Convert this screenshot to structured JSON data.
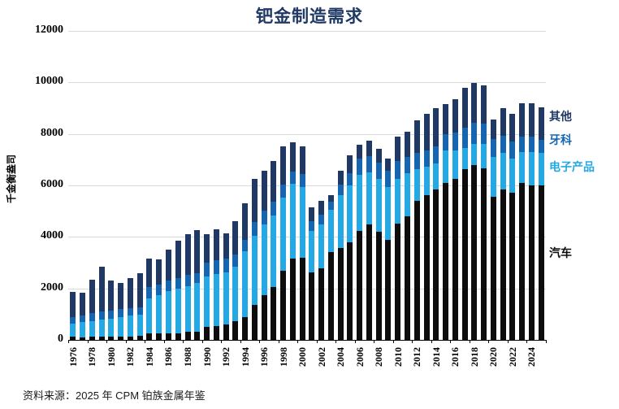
{
  "title": "钯金制造需求",
  "source_note": "资料来源：2025 年 CPM 铂族金属年鉴",
  "colors": {
    "title": "#1F3864",
    "auto": "#0d0d0d",
    "electronics": "#24A9E4",
    "dental": "#1565B1",
    "other": "#1F3864",
    "gridline": "#dadada"
  },
  "chart_data": {
    "type": "bar",
    "stacked": true,
    "title": "钯金制造需求",
    "ylabel": "千金衡盎司",
    "ylim": [
      0,
      12000
    ],
    "y_ticks": [
      0,
      2000,
      4000,
      6000,
      8000,
      10000,
      12000
    ],
    "grid": "horizontal",
    "legend_position": "right-of-last-bar",
    "x": [
      1976,
      1977,
      1978,
      1979,
      1980,
      1981,
      1982,
      1983,
      1984,
      1985,
      1986,
      1987,
      1988,
      1989,
      1990,
      1991,
      1992,
      1993,
      1994,
      1995,
      1996,
      1997,
      1998,
      1999,
      2000,
      2001,
      2002,
      2003,
      2004,
      2005,
      2006,
      2007,
      2008,
      2009,
      2010,
      2011,
      2012,
      2013,
      2014,
      2015,
      2016,
      2017,
      2018,
      2019,
      2020,
      2021,
      2022,
      2023,
      2024,
      2025
    ],
    "x_tick_labels": [
      "1976",
      "1978",
      "1980",
      "1982",
      "1984",
      "1986",
      "1988",
      "1990",
      "1992",
      "1994",
      "1996",
      "1998",
      "2000",
      "2002",
      "2004",
      "2006",
      "2008",
      "2010",
      "2012",
      "2014",
      "2016",
      "2018",
      "2020",
      "2022",
      "2024"
    ],
    "series": [
      {
        "name": "汽车",
        "color": "#0d0d0d",
        "values": [
          130,
          90,
          130,
          135,
          135,
          140,
          140,
          150,
          250,
          250,
          250,
          265,
          305,
          320,
          515,
          550,
          610,
          730,
          885,
          1360,
          1730,
          2040,
          2675,
          3150,
          3200,
          2620,
          2780,
          3410,
          3570,
          3780,
          4220,
          4495,
          4200,
          3885,
          4515,
          4800,
          5410,
          5620,
          5850,
          6095,
          6255,
          6620,
          6780,
          6675,
          5570,
          5830,
          5725,
          6095,
          6000,
          5990
        ]
      },
      {
        "name": "电子产品",
        "color": "#24A9E4",
        "values": [
          500,
          590,
          600,
          645,
          700,
          745,
          800,
          840,
          1370,
          1480,
          1635,
          1725,
          1790,
          1880,
          1950,
          2020,
          2010,
          2100,
          2550,
          2685,
          2750,
          2800,
          2850,
          2900,
          2750,
          1600,
          1700,
          1630,
          2050,
          2210,
          2190,
          2020,
          2055,
          2055,
          1740,
          1665,
          1210,
          1105,
          1015,
          1265,
          1100,
          845,
          840,
          925,
          1525,
          1425,
          1315,
          1210,
          1300,
          1265
        ]
      },
      {
        "name": "牙科",
        "color": "#1565B1",
        "values": [
          260,
          265,
          315,
          320,
          315,
          315,
          285,
          265,
          420,
          420,
          420,
          420,
          420,
          390,
          525,
          525,
          525,
          500,
          460,
          540,
          530,
          520,
          510,
          500,
          490,
          400,
          390,
          330,
          420,
          470,
          630,
          630,
          630,
          630,
          685,
          630,
          630,
          630,
          650,
          620,
          700,
          780,
          800,
          790,
          700,
          680,
          660,
          600,
          600,
          525
        ]
      },
      {
        "name": "其他",
        "color": "#1F3864",
        "values": [
          960,
          885,
          1295,
          1730,
          1155,
          1000,
          1185,
          1325,
          1110,
          970,
          1210,
          1440,
          1580,
          1660,
          1105,
          1210,
          1000,
          1290,
          1405,
          1665,
          1560,
          1580,
          1480,
          1125,
          1075,
          530,
          540,
          250,
          530,
          720,
          550,
          600,
          545,
          465,
          945,
          1000,
          1265,
          1420,
          1495,
          1170,
          1305,
          1535,
          1570,
          1510,
          770,
          1075,
          1075,
          1270,
          1275,
          1240
        ]
      }
    ],
    "legend": [
      {
        "label": "其他",
        "color": "#1F3864"
      },
      {
        "label": "牙科",
        "color": "#1565B1"
      },
      {
        "label": "电子产品",
        "color": "#24A9E4"
      },
      {
        "label": "汽车",
        "color": "#0d0d0d"
      }
    ]
  }
}
